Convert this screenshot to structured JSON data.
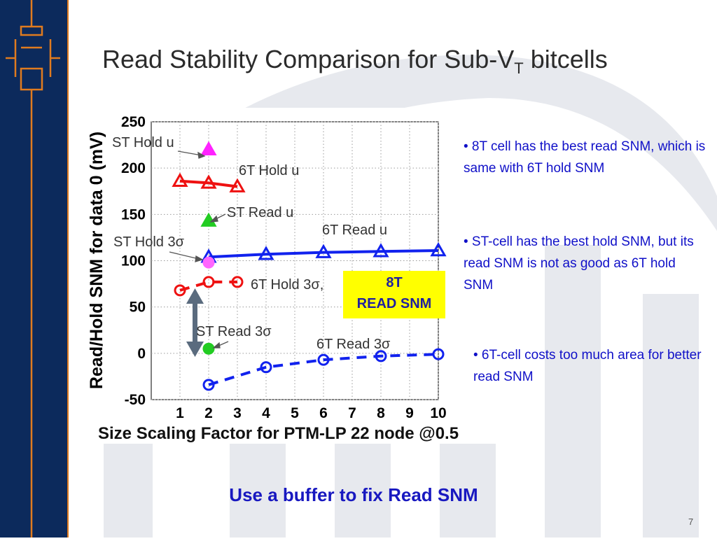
{
  "slide": {
    "title_main": "Read Stability Comparison for Sub-V",
    "title_sub": "T",
    "title_tail": " bitcells",
    "bullets": [
      "• 8T cell has the best read SNM, which is same with 6T hold SNM",
      "• ST-cell has the best hold SNM, but its read SNM is not as good as 6T hold SNM",
      "• 6T-cell costs too much area for better read SNM"
    ],
    "footer_note": "Use a buffer to fix Read SNM",
    "page_number": "7",
    "callout": {
      "line1": "8T",
      "line2": "READ SNM"
    },
    "colors": {
      "sidebar": "#0c2a5c",
      "sidebar_accent": "#e07b1f",
      "bullet_text": "#1010c8",
      "callout_bg": "#ffff00"
    }
  },
  "chart_data": {
    "type": "line",
    "xlabel": "Size Scaling Factor for PTM-LP 22 node @0.5",
    "ylabel": "Read/Hold SNM for data 0 (mV)",
    "xlim": [
      0,
      10
    ],
    "ylim": [
      -50,
      250
    ],
    "grid": true,
    "x_ticks": [
      "1",
      "2",
      "3",
      "4",
      "5",
      "6",
      "7",
      "8",
      "9",
      "10"
    ],
    "y_ticks": [
      "-50",
      "0",
      "50",
      "100",
      "150",
      "200",
      "250"
    ],
    "series": [
      {
        "name": "6T Hold u",
        "color": "#ee1111",
        "marker": "triangle",
        "style": "solid",
        "x": [
          1,
          2,
          3
        ],
        "y": [
          186,
          184,
          180
        ]
      },
      {
        "name": "6T Hold 3σ",
        "color": "#ee1111",
        "marker": "circle",
        "style": "dashed",
        "x": [
          1,
          2,
          3
        ],
        "y": [
          68,
          77,
          77
        ]
      },
      {
        "name": "6T Read u",
        "color": "#1122ee",
        "marker": "triangle",
        "style": "solid",
        "x": [
          2,
          4,
          6,
          8,
          10
        ],
        "y": [
          104,
          107,
          109,
          110,
          111
        ]
      },
      {
        "name": "6T Read 3σ",
        "color": "#1122ee",
        "marker": "circle",
        "style": "dashed",
        "x": [
          2,
          4,
          6,
          8,
          10
        ],
        "y": [
          -34,
          -15,
          -7,
          -3,
          -1
        ]
      },
      {
        "name": "ST Hold u",
        "color": "#ff22ff",
        "marker": "triangle-filled",
        "style": "none",
        "x": [
          2
        ],
        "y": [
          220
        ]
      },
      {
        "name": "ST Hold 3σ",
        "color": "#ff66ff",
        "marker": "circle-filled",
        "style": "none",
        "x": [
          2
        ],
        "y": [
          98
        ]
      },
      {
        "name": "ST Read u",
        "color": "#22cc22",
        "marker": "triangle-filled",
        "style": "none",
        "x": [
          2
        ],
        "y": [
          143
        ]
      },
      {
        "name": "ST Read 3σ",
        "color": "#22cc22",
        "marker": "circle-filled",
        "style": "none",
        "x": [
          2
        ],
        "y": [
          5
        ]
      }
    ],
    "annotations": [
      {
        "key": "st_hold_u",
        "text": "ST Hold u"
      },
      {
        "key": "sixt_hold_u",
        "text": "6T Hold u"
      },
      {
        "key": "st_read_u",
        "text": "ST Read u"
      },
      {
        "key": "sixt_read_u",
        "text": "6T Read u"
      },
      {
        "key": "st_hold_3s",
        "text": "ST Hold 3σ"
      },
      {
        "key": "sixt_hold_3s",
        "text": "6T Hold 3σ,"
      },
      {
        "key": "st_read_3s",
        "text": "ST Read 3σ"
      },
      {
        "key": "sixt_read_3s",
        "text": "6T Read 3σ"
      }
    ]
  }
}
